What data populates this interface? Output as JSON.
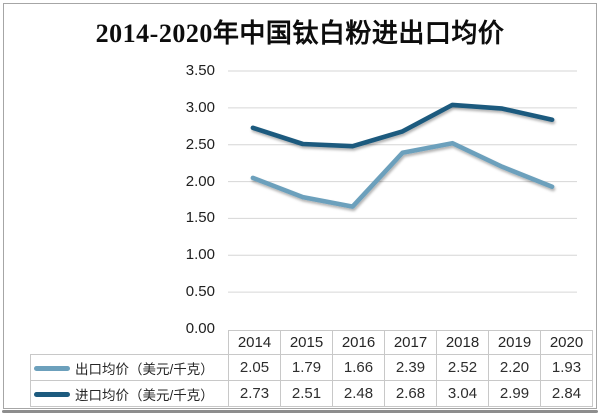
{
  "title": "2014-2020年中国钛白粉进出口均价",
  "colors": {
    "export_line": "#6CA0BC",
    "import_line": "#1C5A7E",
    "gridline": "#D6D6D6",
    "table_border": "#C8C8C8",
    "frame_border": "#A6A6A6",
    "text": "#262626"
  },
  "chart_data": {
    "type": "line",
    "title": "2014-2020年中国钛白粉进出口均价",
    "categories": [
      "2014",
      "2015",
      "2016",
      "2017",
      "2018",
      "2019",
      "2020"
    ],
    "series": [
      {
        "name": "出口均价（美元/千克）",
        "values": [
          2.05,
          1.79,
          1.66,
          2.39,
          2.52,
          2.2,
          1.93
        ],
        "display_values": [
          "2.05",
          "1.79",
          "1.66",
          "2.39",
          "2.52",
          "2.20",
          "1.93"
        ],
        "color": "#6CA0BC"
      },
      {
        "name": "进口均价（美元/千克）",
        "values": [
          2.73,
          2.51,
          2.48,
          2.68,
          3.04,
          2.99,
          2.84
        ],
        "display_values": [
          "2.73",
          "2.51",
          "2.48",
          "2.68",
          "3.04",
          "2.99",
          "2.84"
        ],
        "color": "#1C5A7E"
      }
    ],
    "xlabel": "",
    "ylabel": "",
    "ylim": [
      0,
      3.5
    ],
    "y_tick_labels": [
      "3.50",
      "3.00",
      "2.50",
      "2.00",
      "1.50",
      "1.00",
      "0.50",
      "0.00"
    ],
    "grid": true,
    "legend_position": "bottom-table-left"
  }
}
